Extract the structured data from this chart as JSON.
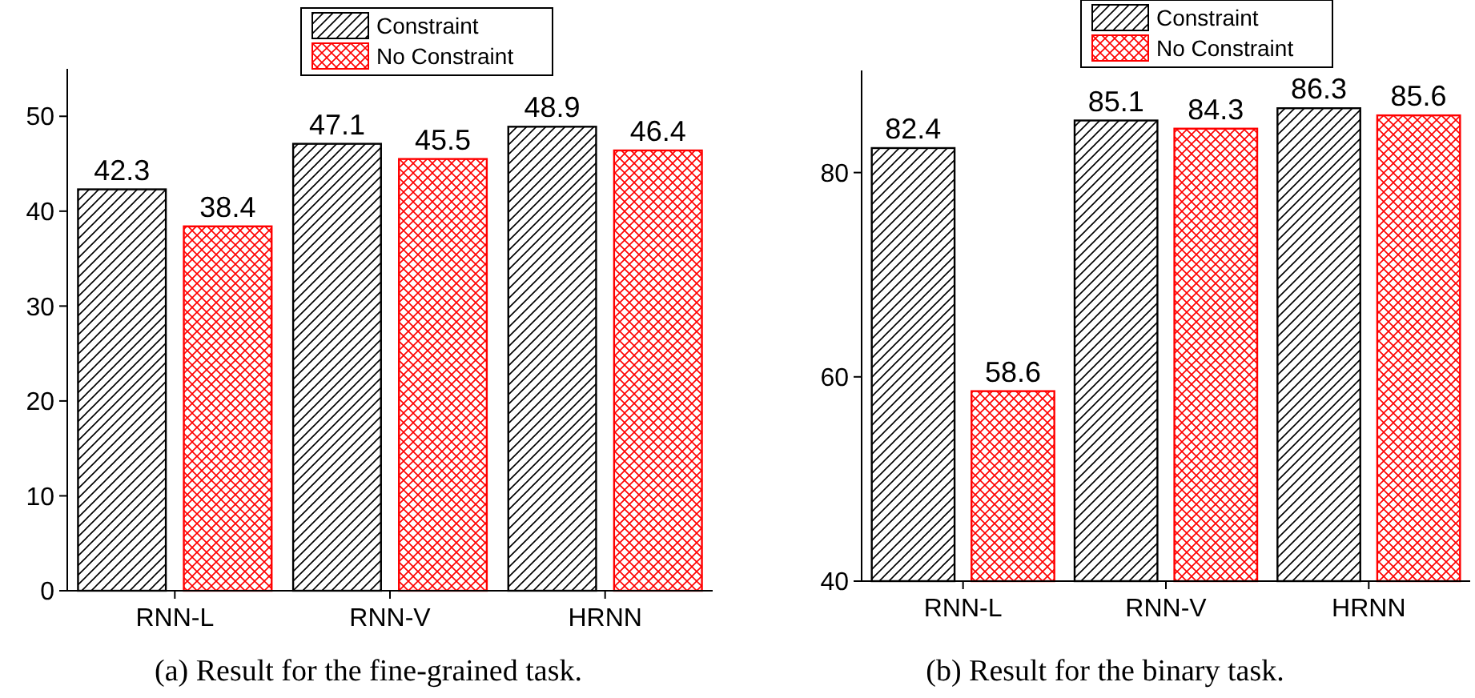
{
  "chart_data": [
    {
      "type": "bar",
      "categories": [
        "RNN-L",
        "RNN-V",
        "HRNN"
      ],
      "series": [
        {
          "name": "Constraint",
          "color": "#000000",
          "values": [
            42.3,
            47.1,
            48.9
          ]
        },
        {
          "name": "No Constraint",
          "color": "#ff0000",
          "values": [
            38.4,
            45.5,
            46.4
          ]
        }
      ],
      "ylim": [
        0,
        55
      ],
      "yticks": [
        0,
        10,
        20,
        30,
        40,
        50
      ],
      "data_labels": true,
      "legend": "top",
      "annotations": [
        "(a) Result for the fine-grained task."
      ]
    },
    {
      "type": "bar",
      "categories": [
        "RNN-L",
        "RNN-V",
        "HRNN"
      ],
      "series": [
        {
          "name": "Constraint",
          "color": "#000000",
          "values": [
            82.4,
            85.1,
            86.3
          ]
        },
        {
          "name": "No Constraint",
          "color": "#ff0000",
          "values": [
            58.6,
            84.3,
            85.6
          ]
        }
      ],
      "ylim": [
        40,
        90
      ],
      "yticks": [
        40,
        60,
        80
      ],
      "data_labels": true,
      "legend": "top",
      "annotations": [
        "(b) Result for the binary task."
      ]
    }
  ]
}
